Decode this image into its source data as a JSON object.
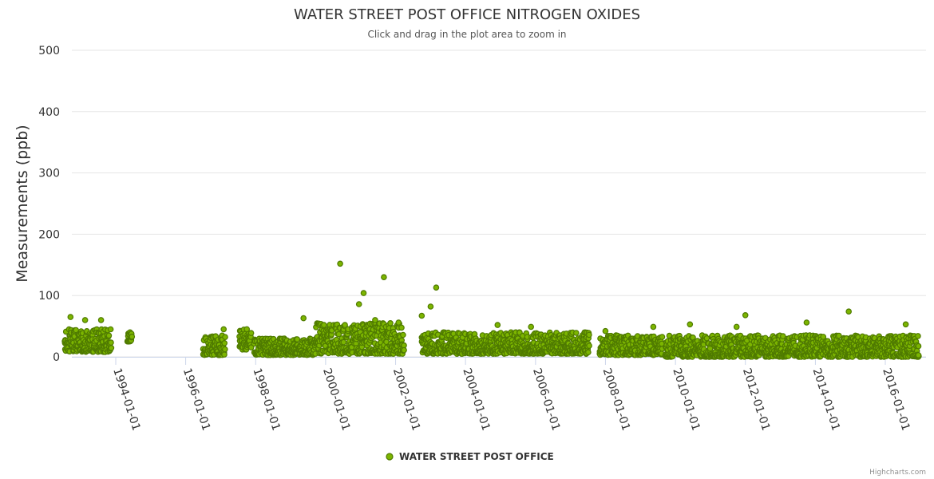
{
  "chart_data": {
    "type": "scatter",
    "title": "WATER STREET POST OFFICE NITROGEN OXIDES",
    "subtitle": "Click and drag in the plot area to zoom in",
    "ylabel": "Measurements (ppb)",
    "xlabel": "",
    "ylim": [
      0,
      500
    ],
    "yticks": [
      0,
      100,
      200,
      300,
      400,
      500
    ],
    "xlim": [
      "1992-06-01",
      "2017-01-01"
    ],
    "xticks": [
      "1994-01-01",
      "1996-01-01",
      "1998-01-01",
      "2000-01-01",
      "2002-01-01",
      "2004-01-01",
      "2006-01-01",
      "2008-01-01",
      "2010-01-01",
      "2012-01-01",
      "2014-01-01",
      "2016-01-01"
    ],
    "grid": true,
    "legend_position": "bottom-center",
    "series": [
      {
        "name": "WATER STREET POST OFFICE",
        "color": "#7cb500",
        "marker_stroke": "#4f7a00",
        "periods": [
          {
            "start": "1992-07-15",
            "end": "1993-11-15",
            "typical_range": [
              8,
              45
            ]
          },
          {
            "start": "1994-05-01",
            "end": "1994-06-15",
            "typical_range": [
              25,
              40
            ]
          },
          {
            "start": "1996-07-01",
            "end": "1997-02-15",
            "typical_range": [
              3,
              35
            ]
          },
          {
            "start": "1997-07-15",
            "end": "1997-11-15",
            "typical_range": [
              12,
              45
            ]
          },
          {
            "start": "1997-12-15",
            "end": "1999-09-15",
            "typical_range": [
              3,
              30
            ]
          },
          {
            "start": "1999-09-15",
            "end": "2002-03-31",
            "typical_range": [
              5,
              55
            ]
          },
          {
            "start": "2002-10-01",
            "end": "2007-07-15",
            "typical_range": [
              5,
              40
            ]
          },
          {
            "start": "2007-11-01",
            "end": "2009-08-15",
            "typical_range": [
              3,
              35
            ]
          },
          {
            "start": "2009-09-15",
            "end": "2016-12-15",
            "typical_range": [
              0,
              35
            ]
          }
        ],
        "highlighted_points": [
          {
            "x": "1992-09-15",
            "y": 65
          },
          {
            "x": "1993-02-15",
            "y": 60
          },
          {
            "x": "1993-08-01",
            "y": 60
          },
          {
            "x": "1997-02-01",
            "y": 45
          },
          {
            "x": "1997-10-01",
            "y": 45
          },
          {
            "x": "1999-05-15",
            "y": 63
          },
          {
            "x": "1999-12-15",
            "y": 52
          },
          {
            "x": "2000-06-01",
            "y": 152
          },
          {
            "x": "2000-12-15",
            "y": 86
          },
          {
            "x": "2001-02-01",
            "y": 104
          },
          {
            "x": "2001-06-01",
            "y": 60
          },
          {
            "x": "2001-09-01",
            "y": 130
          },
          {
            "x": "2002-02-01",
            "y": 56
          },
          {
            "x": "2002-10-01",
            "y": 67
          },
          {
            "x": "2003-01-01",
            "y": 82
          },
          {
            "x": "2003-03-01",
            "y": 113
          },
          {
            "x": "2004-12-01",
            "y": 52
          },
          {
            "x": "2005-11-15",
            "y": 49
          },
          {
            "x": "2008-01-01",
            "y": 42
          },
          {
            "x": "2009-05-15",
            "y": 49
          },
          {
            "x": "2010-06-01",
            "y": 53
          },
          {
            "x": "2011-10-01",
            "y": 49
          },
          {
            "x": "2012-01-01",
            "y": 68
          },
          {
            "x": "2013-10-01",
            "y": 56
          },
          {
            "x": "2014-12-15",
            "y": 74
          },
          {
            "x": "2016-08-01",
            "y": 53
          }
        ]
      }
    ]
  },
  "credits": "Highcharts.com"
}
